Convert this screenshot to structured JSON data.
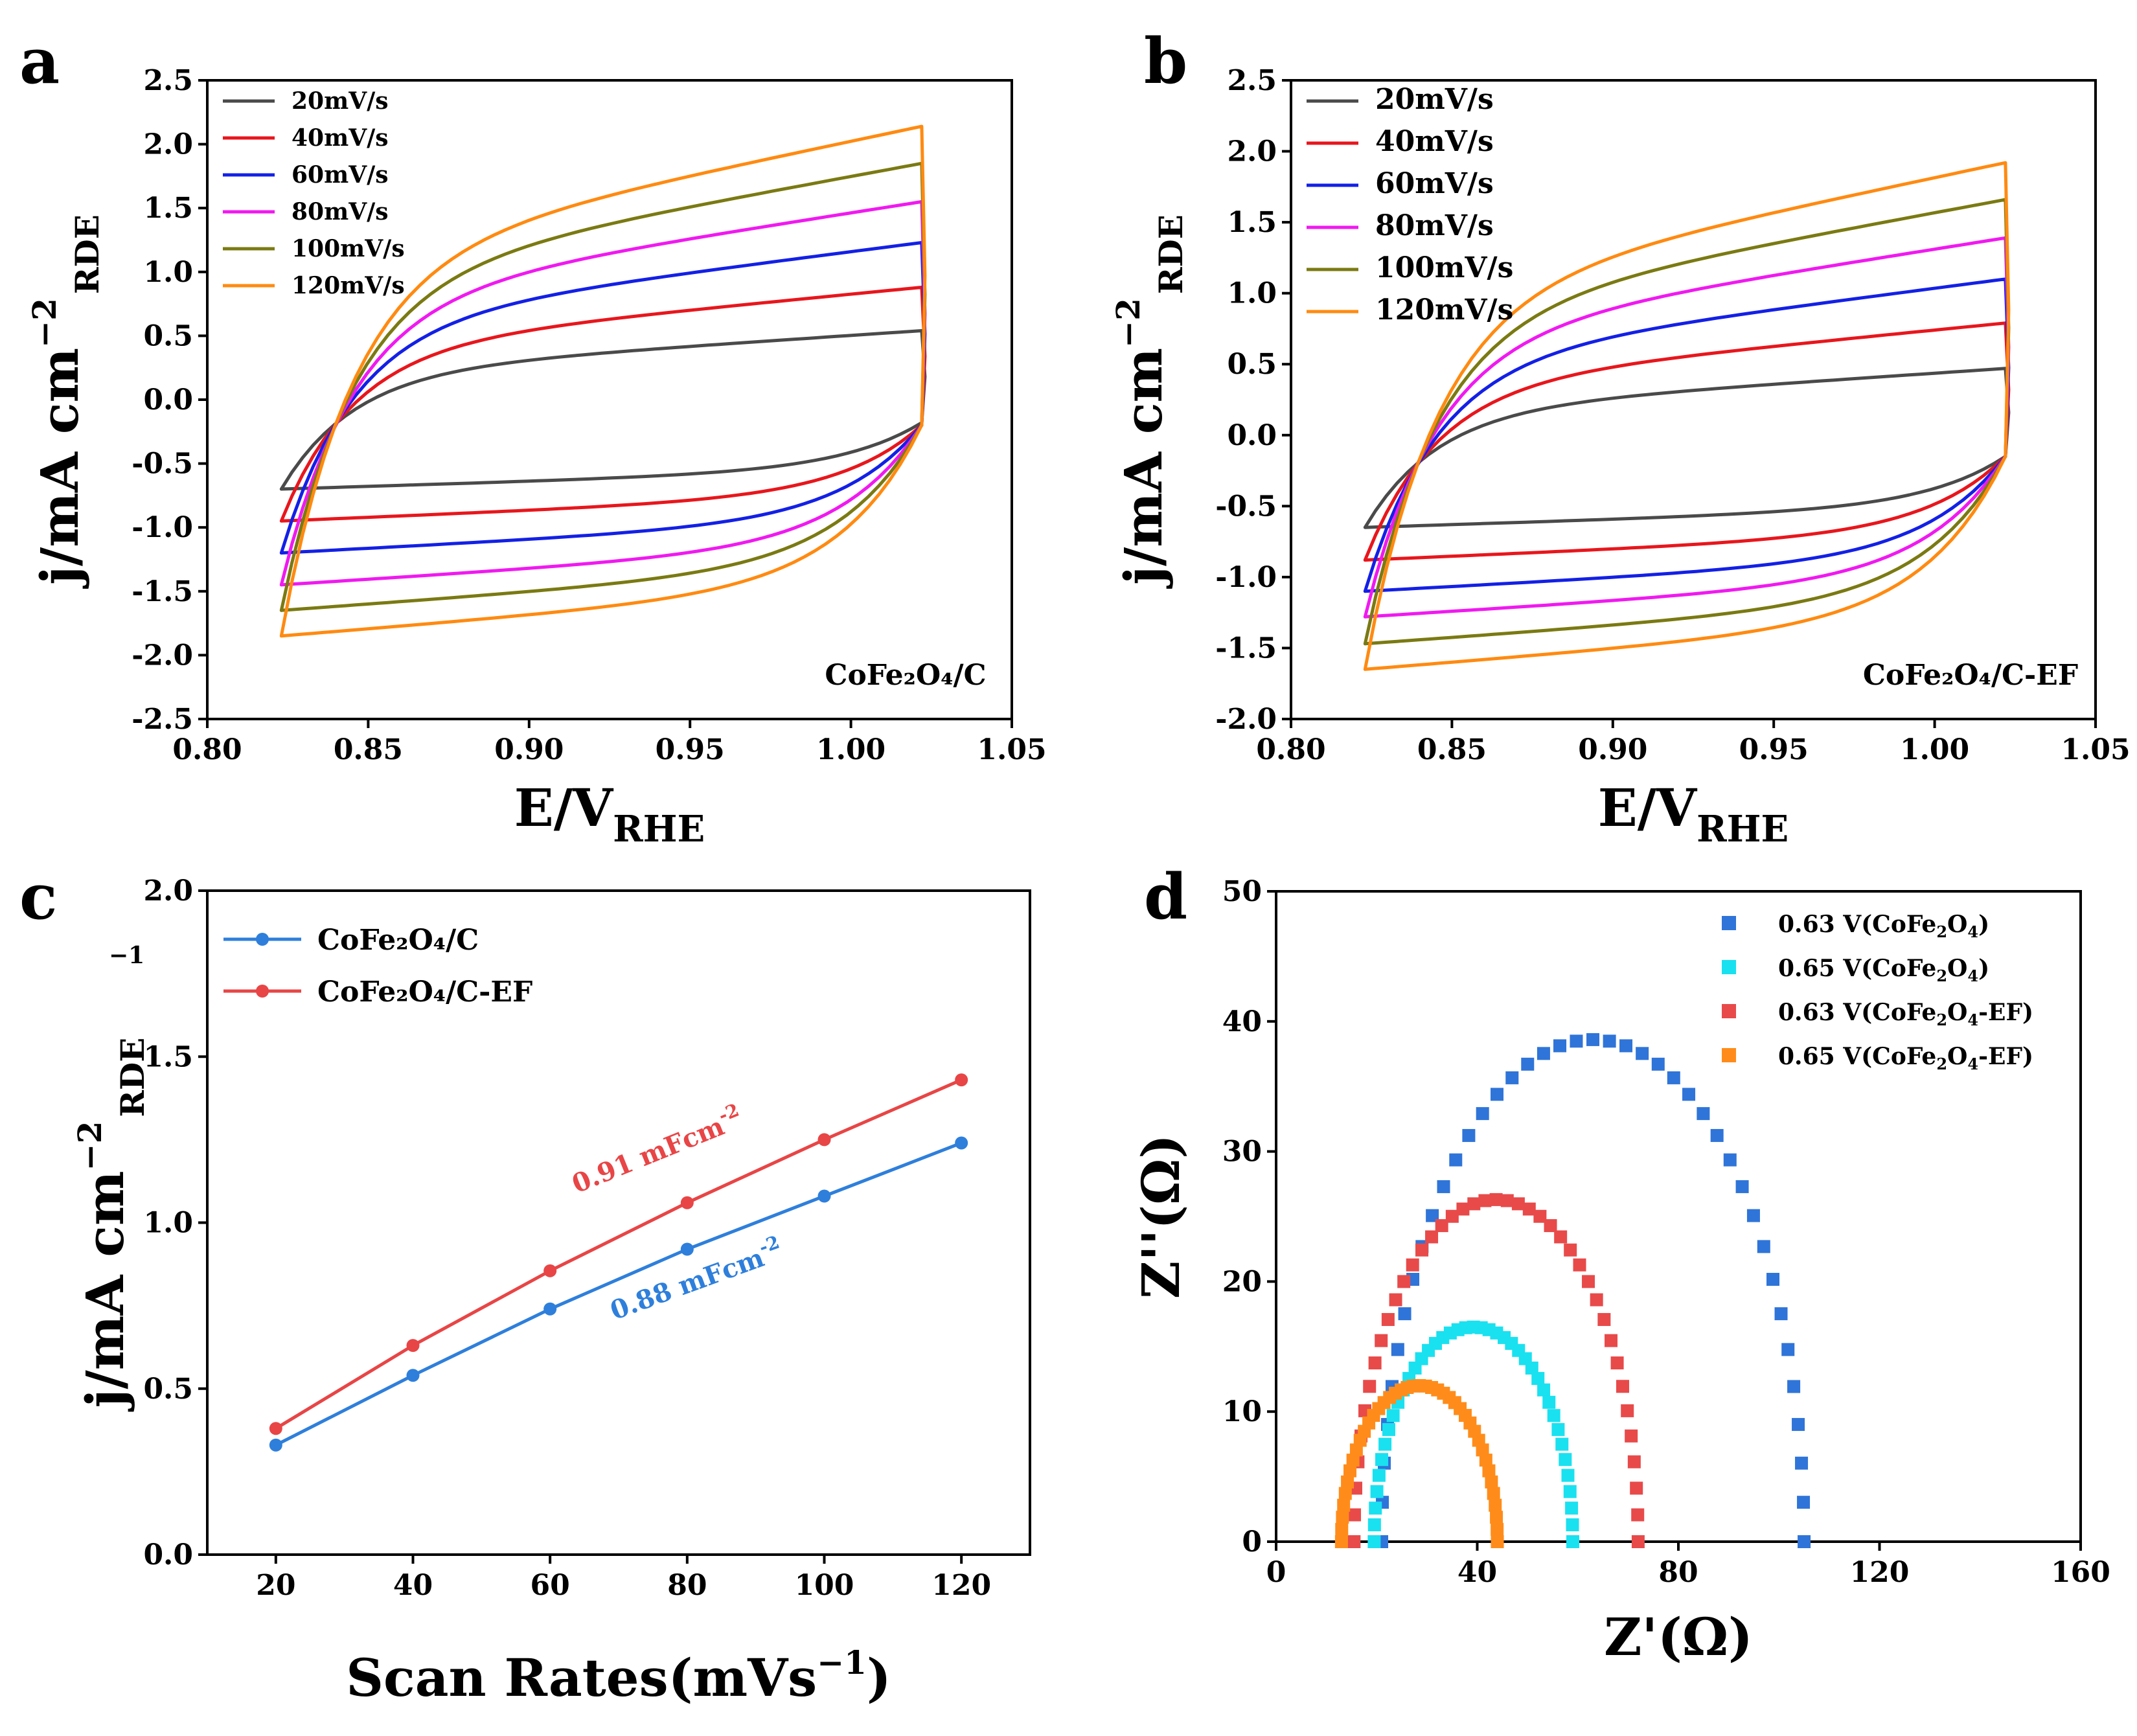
{
  "chart_data": [
    {
      "panel": "a",
      "type": "line",
      "plot_kind": "cv",
      "xlabel": "E/V",
      "xlabel_sub": "RHE",
      "ylabel": "j/mA cm",
      "ylabel_sup": "−2",
      "ylabel_sub": "RDE",
      "xlim": [
        0.8,
        1.05
      ],
      "ylim": [
        -2.5,
        2.5
      ],
      "xticks": [
        "0.80",
        "0.85",
        "0.90",
        "0.95",
        "1.00",
        "1.05"
      ],
      "yticks": [
        "-2.5",
        "-2.0",
        "-1.5",
        "-1.0",
        "-0.5",
        "0.0",
        "0.5",
        "1.0",
        "1.5",
        "2.0",
        "2.5"
      ],
      "sample_label": "CoFe₂O₄/C",
      "potential_window": [
        0.823,
        1.022
      ],
      "series": [
        {
          "name": "20mV/s",
          "color": "#4a4a4a",
          "anodic_start": -0.2,
          "anodic_end": 0.54,
          "cathodic_start": -0.18,
          "cathodic_end": -0.7
        },
        {
          "name": "40mV/s",
          "color": "#e8161c",
          "anodic_start": -0.2,
          "anodic_end": 0.88,
          "cathodic_start": -0.2,
          "cathodic_end": -0.95
        },
        {
          "name": "60mV/s",
          "color": "#1320e6",
          "anodic_start": -0.2,
          "anodic_end": 1.23,
          "cathodic_start": -0.2,
          "cathodic_end": -1.2
        },
        {
          "name": "80mV/s",
          "color": "#f019f0",
          "anodic_start": -0.2,
          "anodic_end": 1.55,
          "cathodic_start": -0.2,
          "cathodic_end": -1.45
        },
        {
          "name": "100mV/s",
          "color": "#7a7a12",
          "anodic_start": -0.2,
          "anodic_end": 1.85,
          "cathodic_start": -0.2,
          "cathodic_end": -1.65
        },
        {
          "name": "120mV/s",
          "color": "#ff8a10",
          "anodic_start": -0.2,
          "anodic_end": 2.14,
          "cathodic_start": -0.2,
          "cathodic_end": -1.85
        }
      ]
    },
    {
      "panel": "b",
      "type": "line",
      "plot_kind": "cv",
      "xlabel": "E/V",
      "xlabel_sub": "RHE",
      "ylabel": "j/mA cm",
      "ylabel_sup": "−2",
      "ylabel_sub": "RDE",
      "xlim": [
        0.8,
        1.05
      ],
      "ylim": [
        -2.0,
        2.5
      ],
      "xticks": [
        "0.80",
        "0.85",
        "0.90",
        "0.95",
        "1.00",
        "1.05"
      ],
      "yticks": [
        "-2.0",
        "-1.5",
        "-1.0",
        "-0.5",
        "0.0",
        "0.5",
        "1.0",
        "1.5",
        "2.0",
        "2.5"
      ],
      "sample_label": "CoFe₂O₄/C-EF",
      "potential_window": [
        0.823,
        1.022
      ],
      "series": [
        {
          "name": "20mV/s",
          "color": "#4a4a4a",
          "anodic_start": -0.2,
          "anodic_end": 0.47,
          "cathodic_start": -0.15,
          "cathodic_end": -0.65
        },
        {
          "name": "40mV/s",
          "color": "#e8161c",
          "anodic_start": -0.2,
          "anodic_end": 0.79,
          "cathodic_start": -0.15,
          "cathodic_end": -0.88
        },
        {
          "name": "60mV/s",
          "color": "#1320e6",
          "anodic_start": -0.2,
          "anodic_end": 1.1,
          "cathodic_start": -0.15,
          "cathodic_end": -1.1
        },
        {
          "name": "80mV/s",
          "color": "#f019f0",
          "anodic_start": -0.2,
          "anodic_end": 1.39,
          "cathodic_start": -0.15,
          "cathodic_end": -1.28
        },
        {
          "name": "100mV/s",
          "color": "#7a7a12",
          "anodic_start": -0.2,
          "anodic_end": 1.66,
          "cathodic_start": -0.15,
          "cathodic_end": -1.47
        },
        {
          "name": "120mV/s",
          "color": "#ff8a10",
          "anodic_start": -0.2,
          "anodic_end": 1.92,
          "cathodic_start": -0.15,
          "cathodic_end": -1.65
        }
      ]
    },
    {
      "panel": "c",
      "type": "line",
      "xlabel": "Scan Rates(mVs",
      "xlabel_sup": "−1",
      "xlabel_close": ")",
      "ylabel": "j/mA cm",
      "ylabel_sup": "−2",
      "ylabel_sub": "RDE",
      "stray_label": "−1",
      "xlim": [
        10,
        130
      ],
      "ylim": [
        0.0,
        2.0
      ],
      "x": [
        20,
        40,
        60,
        80,
        100,
        120
      ],
      "xticks": [
        "20",
        "40",
        "60",
        "80",
        "100",
        "120"
      ],
      "yticks": [
        "0.0",
        "0.5",
        "1.0",
        "1.5",
        "2.0"
      ],
      "series": [
        {
          "name": "CoFe₂O₄/C",
          "color": "#2e7fdb",
          "values": [
            0.33,
            0.54,
            0.74,
            0.92,
            1.08,
            1.24
          ]
        },
        {
          "name": "CoFe₂O₄/C-EF",
          "color": "#e84546",
          "values": [
            0.38,
            0.63,
            0.855,
            1.06,
            1.25,
            1.43
          ]
        }
      ],
      "annotations": [
        {
          "text": "0.91 mFcm",
          "sup": "-2",
          "color": "#e84546",
          "series": "CoFe₂O₄/C-EF"
        },
        {
          "text": "0.88 mFcm",
          "sup": "-2",
          "color": "#2e7fdb",
          "series": "CoFe₂O₄/C"
        }
      ]
    },
    {
      "panel": "d",
      "type": "scatter",
      "xlabel": "Z'(Ω)",
      "ylabel": "Z''(Ω)",
      "xlim": [
        0,
        160
      ],
      "ylim": [
        0,
        50
      ],
      "xticks": [
        "0",
        "40",
        "80",
        "120",
        "160"
      ],
      "yticks": [
        "0",
        "10",
        "20",
        "30",
        "40",
        "50"
      ],
      "series": [
        {
          "name": "0.63 V(CoFe",
          "sub": "2",
          "mid": "O",
          "sub2": "4",
          "tail": ")",
          "color": "#2f74d8",
          "r0": 21,
          "r1": 105,
          "peak": 38.6
        },
        {
          "name": "0.65 V(CoFe",
          "sub": "2",
          "mid": "O",
          "sub2": "4",
          "tail": ")",
          "color": "#19e1f0",
          "r0": 19.5,
          "r1": 59,
          "peak": 16.5
        },
        {
          "name": "0.63 V(CoFe",
          "sub": "2",
          "mid": "O",
          "sub2": "4",
          "tail": "-EF)",
          "color": "#e84a4a",
          "r0": 15.5,
          "r1": 72,
          "peak": 26.3
        },
        {
          "name": "0.65 V(CoFe",
          "sub": "2",
          "mid": "O",
          "sub2": "4",
          "tail": "-EF)",
          "color": "#ff8c1a",
          "r0": 13,
          "r1": 44,
          "peak": 12
        }
      ]
    }
  ]
}
